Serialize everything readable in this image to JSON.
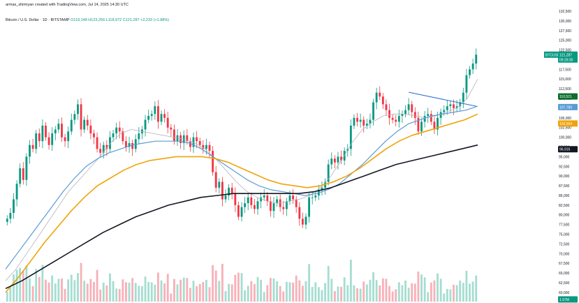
{
  "header": {
    "publisher": "armas_shirinyan created with TradingView.com, Jul 14, 2025 14:30 UTC",
    "symbol": "Bitcoin / U.S. Dollar · 1D · BITSTAMP",
    "ohlc": "O119,148 H123,256 L118,972 C121,287 +2,233 (+1.88%)"
  },
  "colors": {
    "up": "#089981",
    "down": "#f23645",
    "ma_fast": "#b2b5be",
    "ma_mid": "#5b9bd5",
    "ma_slow": "#f0a30a",
    "ma_long": "#131722",
    "price_tag": "#089981"
  },
  "chart_data": {
    "type": "candlestick",
    "title": "",
    "xlabel": "",
    "ylabel": "",
    "ylim": [
      58000,
      132500
    ],
    "y_ticks": [
      "132,500",
      "130,000",
      "127,500",
      "125,000",
      "122,500",
      "120,000",
      "117,500",
      "115,000",
      "112,500",
      "110,000",
      "107,500",
      "105,000",
      "102,500",
      "100,000",
      "97,500",
      "95,000",
      "92,500",
      "90,000",
      "87,500",
      "85,000",
      "82,500",
      "80,000",
      "77,500",
      "75,000",
      "72,500",
      "70,000",
      "67,500",
      "65,000",
      "62,500",
      "60,000"
    ],
    "close": [
      79000,
      80500,
      84000,
      88000,
      92000,
      89000,
      95000,
      98000,
      97000,
      101000,
      99000,
      103000,
      100000,
      98000,
      101000,
      102000,
      103500,
      100000,
      99000,
      101500,
      104500,
      106000,
      108500,
      102000,
      104500,
      103000,
      101000,
      100000,
      97000,
      96000,
      98000,
      97000,
      100000,
      101000,
      102500,
      101500,
      99000,
      97500,
      98500,
      97000,
      99500,
      101000,
      102000,
      104500,
      105500,
      106000,
      108000,
      104000,
      106000,
      105000,
      102500,
      102000,
      99000,
      100500,
      98500,
      100500,
      99000,
      97500,
      100000,
      99000,
      98000,
      97000,
      98000,
      96500,
      91000,
      87000,
      88500,
      84000,
      85000,
      87000,
      85500,
      82500,
      79500,
      82000,
      83000,
      84500,
      82500,
      81500,
      83500,
      84500,
      85000,
      83500,
      81000,
      83000,
      84000,
      82000,
      81500,
      83500,
      85000,
      84000,
      82000,
      79000,
      77500,
      79500,
      84500,
      84500,
      85000,
      86500,
      87000,
      88500,
      93000,
      94500,
      93500,
      95000,
      94000,
      96500,
      97000,
      103000,
      105000,
      104000,
      104500,
      103000,
      103500,
      104500,
      109000,
      111500,
      110500,
      108500,
      107000,
      105000,
      104500,
      104000,
      105500,
      106000,
      107000,
      108500,
      106500,
      105000,
      101500,
      104000,
      105500,
      106000,
      104000,
      102000,
      105000,
      106500,
      107000,
      108000,
      108500,
      107500,
      108000,
      109000,
      111500,
      116000,
      117500,
      119000,
      121287
    ],
    "ma_fast": {
      "name": "",
      "values": [
        63000,
        66000,
        70000,
        74000,
        78000,
        82000,
        86000,
        89000,
        92000,
        95000,
        98500,
        101000,
        102000,
        101500,
        101000,
        100500,
        100000,
        99500,
        98500,
        97000,
        94500,
        91500,
        88500,
        86000,
        84500,
        83500,
        83000,
        83500,
        84000,
        85000,
        87000,
        90000,
        94000,
        98500,
        102000,
        104000,
        105500,
        106000,
        106000,
        105500,
        105000,
        105500,
        106500,
        107500,
        110000,
        115000
      ]
    },
    "ma_mid": {
      "name": "",
      "values": [
        66000,
        70000,
        74000,
        78000,
        82000,
        86000,
        89500,
        92500,
        94500,
        96000,
        97000,
        98000,
        98500,
        99000,
        99000,
        99000,
        98500,
        97000,
        95000,
        93000,
        91000,
        89000,
        87500,
        86500,
        86000,
        85500,
        85000,
        85500,
        86500,
        88000,
        90500,
        93000,
        96000,
        99000,
        101500,
        103500,
        104500,
        105500,
        106000,
        106500,
        107000,
        108000
      ]
    },
    "ma_slow": {
      "name": "",
      "values": [
        60000,
        64000,
        68500,
        73000,
        77000,
        81000,
        84500,
        87500,
        89500,
        91500,
        93000,
        94000,
        94500,
        95000,
        95000,
        95000,
        94500,
        93500,
        92000,
        90500,
        89000,
        88000,
        87500,
        87000,
        87500,
        88500,
        90000,
        92000,
        94500,
        97000,
        99000,
        100500,
        101500,
        102500,
        103500,
        104500,
        106000
      ]
    },
    "ma_long": {
      "name": "",
      "values": [
        61000,
        63000,
        65500,
        68000,
        70500,
        73000,
        75500,
        77500,
        79500,
        81000,
        82500,
        83500,
        84500,
        85000,
        85500,
        85500,
        85500,
        85500,
        85500,
        86000,
        87000,
        88500,
        90000,
        91500,
        93000,
        94000,
        95000,
        96000,
        97000,
        98000
      ]
    },
    "price_tags": [
      {
        "label": "BTCUSD",
        "value": "121,287",
        "sub": "09:29:30",
        "price": 121287,
        "color": "#089981"
      },
      {
        "label": "",
        "value": "110,521",
        "price": 110521,
        "color": "#0b6e2c"
      },
      {
        "label": "",
        "value": "107,780",
        "price": 107780,
        "color": "#5b9bd5"
      },
      {
        "label": "",
        "value": "103,554",
        "price": 103554,
        "color": "#f0a30a"
      },
      {
        "label": "",
        "value": "96,916",
        "price": 96916,
        "color": "#131722"
      },
      {
        "label": "",
        "value": "1.97M",
        "price": 58200,
        "color": "#089981"
      }
    ],
    "trendlines": [
      {
        "from": [
          125,
          111600
        ],
        "to": [
          146,
          108000
        ]
      }
    ]
  }
}
